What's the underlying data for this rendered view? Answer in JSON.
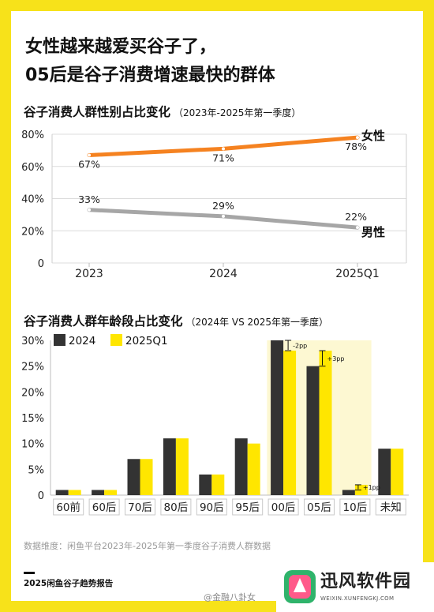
{
  "headline": {
    "line1": "女性越来越爱买谷子了，",
    "line2": "05后是谷子消费增速最快的群体"
  },
  "chart1_title": "谷子消费人群性别占比变化",
  "chart1_subtitle": "（2023年-2025年第一季度）",
  "chart2_title": "谷子消费人群年龄段占比变化",
  "chart2_subtitle": "（2024年 VS 2025年第一季度）",
  "chart_data": [
    {
      "type": "line",
      "categories": [
        "2023",
        "2024",
        "2025Q1"
      ],
      "series": [
        {
          "name": "女性",
          "values": [
            67,
            71,
            78
          ],
          "labels": [
            "67%",
            "71%",
            "78%"
          ],
          "color": "#f58220"
        },
        {
          "name": "男性",
          "values": [
            33,
            29,
            22
          ],
          "labels": [
            "33%",
            "29%",
            "22%"
          ],
          "color": "#a6a6a6"
        }
      ],
      "yticks": [
        "0",
        "20%",
        "40%",
        "60%",
        "80%"
      ],
      "ylim": [
        0,
        80
      ],
      "grid": true
    },
    {
      "type": "bar",
      "categories": [
        "60前",
        "60后",
        "70后",
        "80后",
        "90后",
        "95后",
        "00后",
        "05后",
        "10后",
        "未知"
      ],
      "series": [
        {
          "name": "2024",
          "values": [
            1,
            1,
            7,
            11,
            4,
            11,
            30,
            25,
            1,
            9
          ],
          "color": "#333333"
        },
        {
          "name": "2025Q1",
          "values": [
            1,
            1,
            7,
            11,
            4,
            10,
            28,
            28,
            2,
            9
          ],
          "color": "#ffe600"
        }
      ],
      "yticks": [
        "0",
        "5%",
        "10%",
        "15%",
        "20%",
        "25%",
        "30%"
      ],
      "ylim": [
        0,
        30
      ],
      "annotations": [
        {
          "category": "00后",
          "text": "-2pp"
        },
        {
          "category": "05后",
          "text": "+3pp"
        },
        {
          "category": "10后",
          "text": "+1pp"
        }
      ],
      "highlight_categories": [
        "00后",
        "05后",
        "10后"
      ],
      "legend": "top-left"
    }
  ],
  "footnote": "数据维度：闲鱼平台2023年-2025年第一季度谷子消费人群数据",
  "brand": "2025闲鱼谷子趋势报告",
  "watermark": "@金融八卦女",
  "logo": {
    "name": "迅风软件园",
    "url": "WEIXIN.XUNFENGKJ.COM"
  },
  "colors": {
    "frame": "#f7e21a",
    "female": "#f58220",
    "male": "#a6a6a6",
    "bar2024": "#333333",
    "bar2025": "#ffe600",
    "highlight": "#fdf8d2"
  }
}
